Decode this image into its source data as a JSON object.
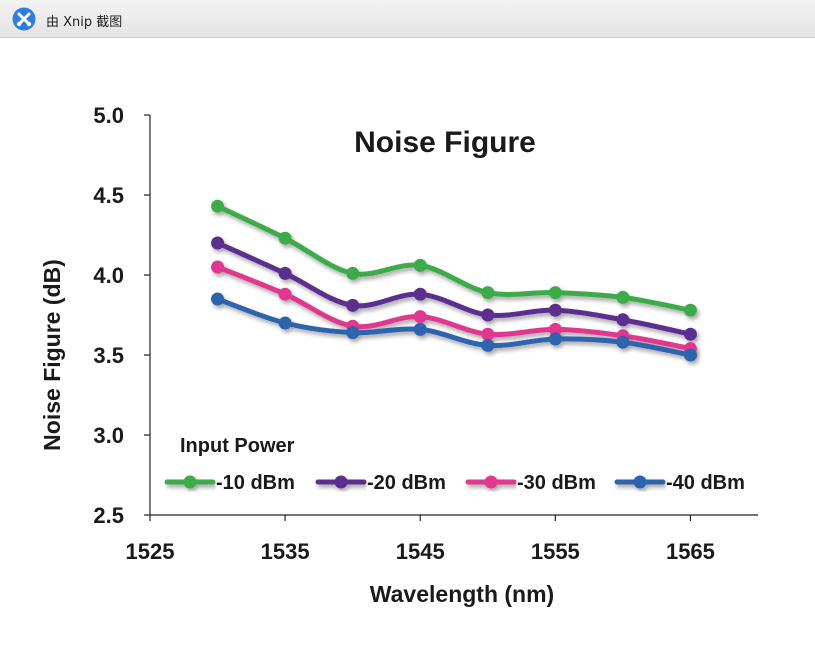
{
  "window": {
    "title": "由 Xnip 截图",
    "icon": "xnip-app-icon"
  },
  "chart_data": {
    "type": "line",
    "title": "Noise Figure",
    "xlabel": "Wavelength (nm)",
    "ylabel": "Noise Figure (dB)",
    "xlim": [
      1525,
      1570
    ],
    "ylim": [
      2.5,
      5.0
    ],
    "xticks": [
      "1525",
      "1535",
      "1545",
      "1555",
      "1565"
    ],
    "yticks": [
      "2.5",
      "3.0",
      "3.5",
      "4.0",
      "4.5",
      "5.0"
    ],
    "legend_title": "Input Power",
    "legend_position": "bottom-inside",
    "x": [
      1530,
      1535,
      1540,
      1545,
      1550,
      1555,
      1560,
      1565
    ],
    "series": [
      {
        "name": "-10 dBm",
        "color": "#3cab4a",
        "values": [
          4.43,
          4.23,
          4.01,
          4.06,
          3.89,
          3.89,
          3.86,
          3.78
        ]
      },
      {
        "name": "-20 dBm",
        "color": "#5b2d8e",
        "values": [
          4.2,
          4.01,
          3.81,
          3.88,
          3.75,
          3.78,
          3.72,
          3.63
        ]
      },
      {
        "name": "-30 dBm",
        "color": "#e0398f",
        "values": [
          4.05,
          3.88,
          3.68,
          3.74,
          3.63,
          3.66,
          3.62,
          3.54
        ]
      },
      {
        "name": "-40 dBm",
        "color": "#2e64ad",
        "values": [
          3.85,
          3.7,
          3.64,
          3.66,
          3.56,
          3.6,
          3.58,
          3.5
        ]
      }
    ]
  }
}
